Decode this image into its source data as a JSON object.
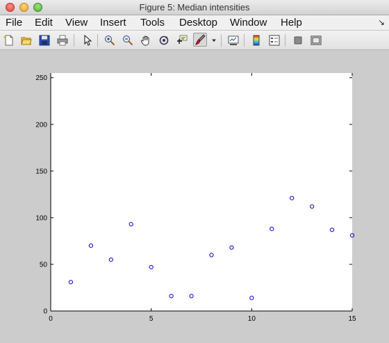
{
  "window": {
    "title": "Figure 5: Median intensities"
  },
  "menu": {
    "items": [
      "File",
      "Edit",
      "View",
      "Insert",
      "Tools",
      "Desktop",
      "Window",
      "Help"
    ],
    "corner_glyph": "↘"
  },
  "toolbar": {
    "icons": [
      "new-figure-icon",
      "open-file-icon",
      "save-icon",
      "print-icon",
      "pointer-icon",
      "zoom-in-icon",
      "zoom-out-icon",
      "pan-hand-icon",
      "rotate-3d-icon",
      "data-cursor-icon",
      "brush-icon",
      "dropdown-arrow-icon",
      "link-plot-icon",
      "colorbar-icon",
      "legend-icon",
      "hide-plot-tools-icon",
      "show-plot-tools-icon"
    ]
  },
  "chart_data": {
    "type": "scatter",
    "title": "",
    "xlabel": "",
    "ylabel": "",
    "xlim": [
      0,
      15
    ],
    "ylim": [
      0,
      255
    ],
    "xticks": [
      0,
      5,
      10,
      15
    ],
    "yticks": [
      0,
      50,
      100,
      150,
      200,
      250
    ],
    "marker": "circle-open",
    "marker_color": "#0000cc",
    "grid": false,
    "series": [
      {
        "x": [
          1,
          2,
          3,
          4,
          5,
          6,
          7,
          8,
          9,
          10,
          11,
          12,
          13,
          14,
          15
        ],
        "y": [
          31,
          70,
          55,
          93,
          47,
          16,
          16,
          60,
          68,
          14,
          88,
          121,
          112,
          87,
          81
        ]
      }
    ]
  }
}
